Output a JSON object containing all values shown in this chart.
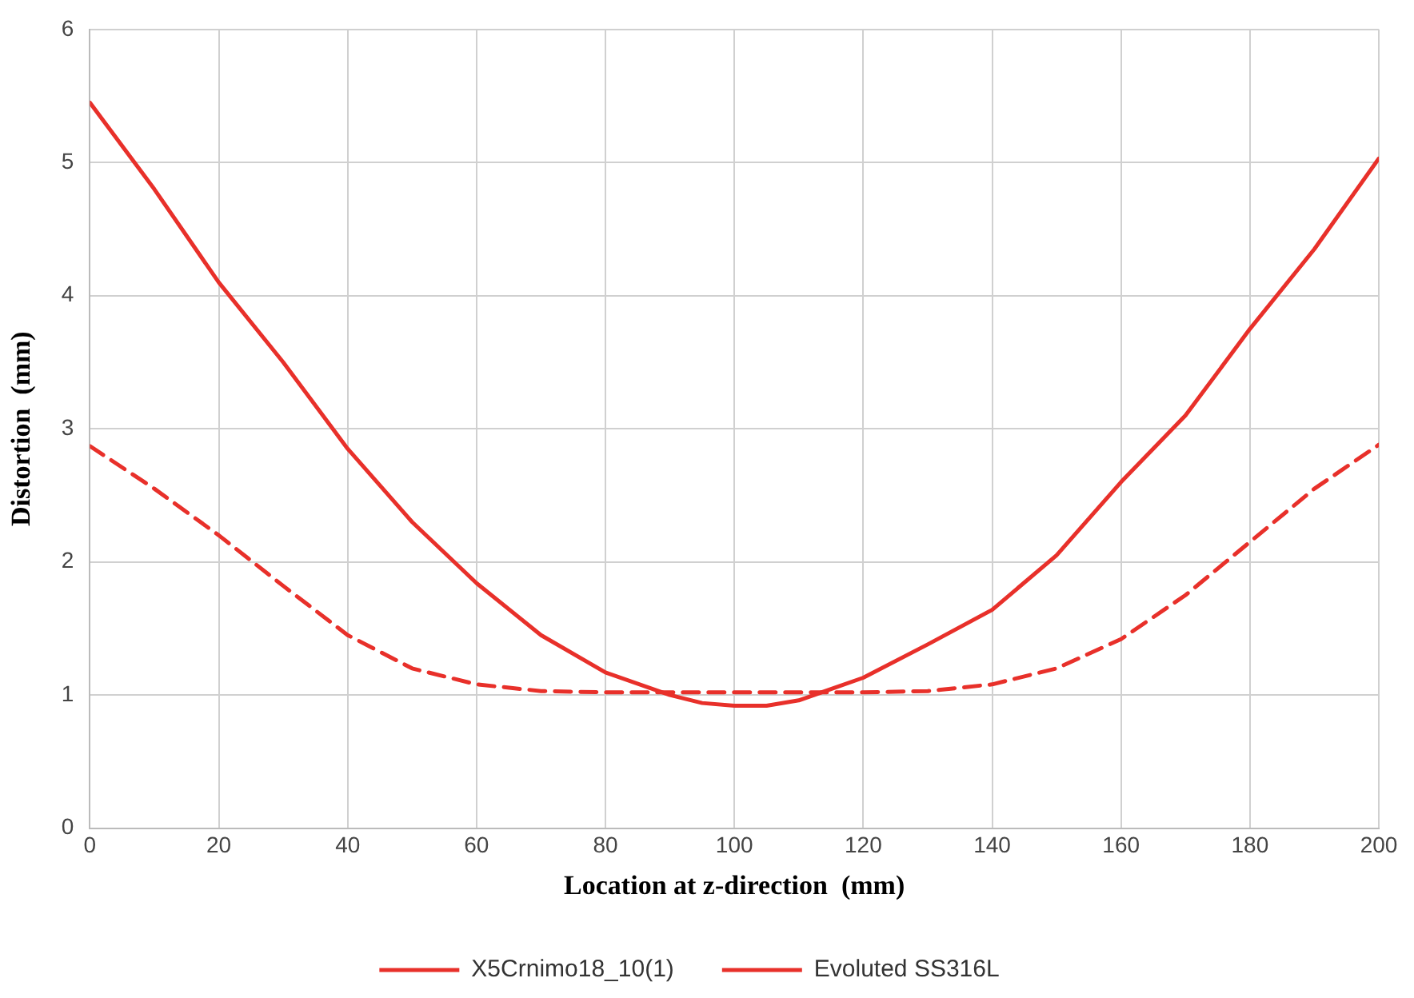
{
  "chart_data": {
    "type": "line",
    "xlabel": "Location at z-direction  (mm)",
    "ylabel": "Distortion  (mm)",
    "x": [
      0,
      10,
      20,
      30,
      40,
      50,
      60,
      70,
      80,
      90,
      95,
      100,
      105,
      110,
      120,
      130,
      140,
      150,
      160,
      170,
      180,
      190,
      200
    ],
    "series": [
      {
        "name": "X5Crnimo18_10(1)",
        "color": "#e8302a",
        "line_style": "dashed",
        "values": [
          2.87,
          2.55,
          2.2,
          1.82,
          1.45,
          1.2,
          1.08,
          1.03,
          1.02,
          1.02,
          1.02,
          1.02,
          1.02,
          1.02,
          1.02,
          1.03,
          1.08,
          1.2,
          1.42,
          1.75,
          2.15,
          2.55,
          2.88
        ]
      },
      {
        "name": "Evoluted SS316L",
        "color": "#e8302a",
        "line_style": "solid",
        "values": [
          5.45,
          4.8,
          4.1,
          3.5,
          2.85,
          2.3,
          1.84,
          1.45,
          1.17,
          1.0,
          0.94,
          0.92,
          0.92,
          0.96,
          1.13,
          1.38,
          1.64,
          2.05,
          2.6,
          3.1,
          3.75,
          4.35,
          5.03
        ]
      }
    ],
    "xlim": [
      0,
      200
    ],
    "xticks": [
      0,
      20,
      40,
      60,
      80,
      100,
      120,
      140,
      160,
      180,
      200
    ],
    "ylim": [
      0,
      6
    ],
    "yticks": [
      0,
      1,
      2,
      3,
      4,
      5,
      6
    ],
    "grid": true,
    "legend": "bottom",
    "marker": "none"
  }
}
